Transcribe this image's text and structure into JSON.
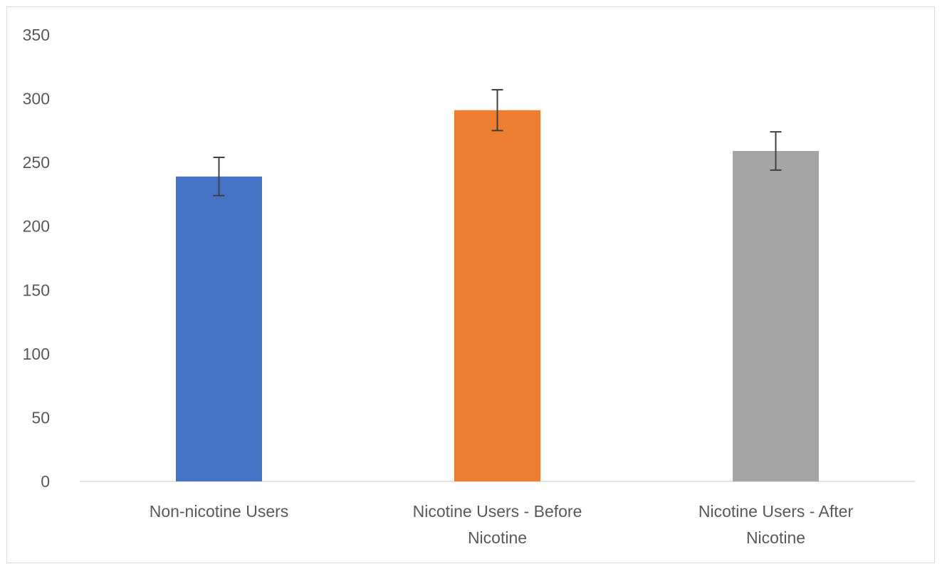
{
  "chart_data": {
    "type": "bar",
    "title": "",
    "xlabel": "",
    "ylabel": "",
    "categories": [
      [
        "Non-nicotine Users"
      ],
      [
        "Nicotine Users - Before",
        "Nicotine"
      ],
      [
        "Nicotine Users - After",
        "Nicotine"
      ]
    ],
    "values": [
      239,
      291,
      259
    ],
    "error": [
      15,
      16,
      15
    ],
    "colors": [
      "#4472c4",
      "#ed7d31",
      "#a5a5a5"
    ],
    "ylim": [
      0,
      350
    ],
    "yticks": [
      0,
      50,
      100,
      150,
      200,
      250,
      300,
      350
    ],
    "grid": false,
    "legend": "none"
  }
}
